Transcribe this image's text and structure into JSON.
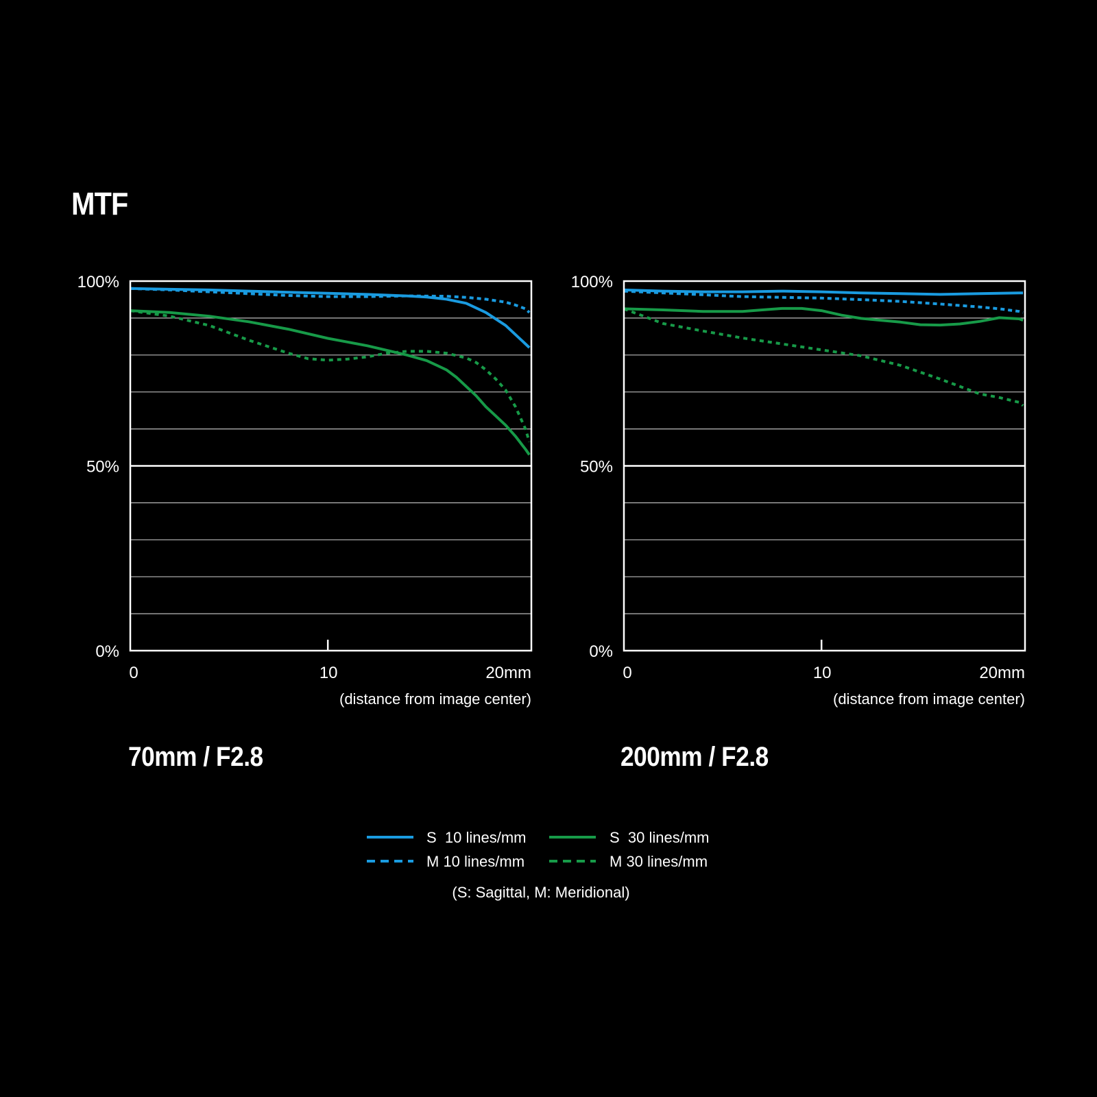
{
  "page": {
    "title": "MTF"
  },
  "colors": {
    "background": "#000000",
    "blue": "#1a9be0",
    "green": "#179a48",
    "grid": "#bbbbbb",
    "frame": "#ffffff"
  },
  "legend": {
    "items": [
      {
        "label": "S  10 lines/mm",
        "color": "#1a9be0",
        "style": "solid"
      },
      {
        "label": "S  30 lines/mm",
        "color": "#179a48",
        "style": "solid"
      },
      {
        "label": "M 10 lines/mm",
        "color": "#1a9be0",
        "style": "dashed"
      },
      {
        "label": "M 30 lines/mm",
        "color": "#179a48",
        "style": "dashed"
      }
    ],
    "note": "(S: Sagittal, M: Meridional)"
  },
  "chart_data": [
    {
      "type": "line",
      "title": "70mm / F2.8",
      "xlabel": "(distance from image center)",
      "ylabel": "",
      "xlim": [
        0,
        20.3
      ],
      "ylim": [
        0,
        100
      ],
      "x_ticks": [
        "0",
        "10",
        "20mm"
      ],
      "y_ticks": [
        "100%",
        "50%",
        "0%"
      ],
      "grid": true,
      "series": [
        {
          "name": "S  10 lines/mm",
          "color": "#1a9be0",
          "style": "solid",
          "x": [
            0,
            2,
            4,
            6,
            8,
            10,
            12,
            14,
            15,
            16,
            17,
            18,
            19,
            20,
            20.2
          ],
          "y": [
            98,
            97.8,
            97.6,
            97.3,
            97,
            96.7,
            96.4,
            96,
            95.7,
            95.1,
            94,
            91.5,
            88,
            83,
            82
          ]
        },
        {
          "name": "M 10 lines/mm",
          "color": "#1a9be0",
          "style": "dashed",
          "x": [
            0,
            2,
            4,
            6,
            8,
            10,
            12,
            14,
            16,
            17,
            18,
            19,
            19.5,
            20,
            20.2
          ],
          "y": [
            98,
            97.6,
            97.1,
            96.6,
            96.1,
            95.8,
            95.8,
            96,
            95.9,
            95.6,
            95.1,
            94.3,
            93.5,
            92.5,
            91.5
          ]
        },
        {
          "name": "S  30 lines/mm",
          "color": "#179a48",
          "style": "solid",
          "x": [
            0,
            2,
            4,
            6,
            8,
            10,
            12,
            14,
            15,
            16,
            16.5,
            17,
            17.5,
            18,
            18.5,
            19,
            19.5,
            20,
            20.2
          ],
          "y": [
            92,
            91.5,
            90.5,
            89,
            87,
            84.5,
            82.5,
            80,
            78.5,
            76,
            74,
            71.5,
            69,
            66,
            63.5,
            61,
            58,
            54.5,
            53
          ]
        },
        {
          "name": "M 30 lines/mm",
          "color": "#179a48",
          "style": "dashed",
          "x": [
            0,
            2,
            4,
            6,
            8,
            9,
            10,
            11,
            12,
            13,
            14,
            15,
            16,
            17,
            17.5,
            18,
            18.5,
            19,
            19.5,
            20,
            20.2
          ],
          "y": [
            92,
            90.5,
            88,
            84,
            80.5,
            79,
            78.6,
            78.9,
            79.5,
            80.5,
            81,
            81,
            80.5,
            79.2,
            78,
            76,
            73.5,
            70.5,
            66,
            60,
            56.5
          ]
        }
      ]
    },
    {
      "type": "line",
      "title": "200mm / F2.8",
      "xlabel": "(distance from image center)",
      "ylabel": "",
      "xlim": [
        0,
        20.3
      ],
      "ylim": [
        0,
        100
      ],
      "x_ticks": [
        "0",
        "10",
        "20mm"
      ],
      "y_ticks": [
        "100%",
        "50%",
        "0%"
      ],
      "grid": true,
      "series": [
        {
          "name": "S  10 lines/mm",
          "color": "#1a9be0",
          "style": "solid",
          "x": [
            0,
            2,
            4,
            6,
            8,
            10,
            12,
            14,
            16,
            18,
            20,
            20.2
          ],
          "y": [
            97.6,
            97.3,
            97.1,
            97.1,
            97.3,
            97.1,
            96.8,
            96.6,
            96.4,
            96.6,
            96.8,
            96.8
          ]
        },
        {
          "name": "M 10 lines/mm",
          "color": "#1a9be0",
          "style": "dashed",
          "x": [
            0,
            2,
            4,
            6,
            8,
            10,
            12,
            14,
            16,
            18,
            19,
            20,
            20.2
          ],
          "y": [
            97.3,
            96.8,
            96.3,
            95.8,
            95.6,
            95.4,
            95,
            94.5,
            93.8,
            93,
            92.5,
            91.8,
            91.5
          ]
        },
        {
          "name": "S  30 lines/mm",
          "color": "#179a48",
          "style": "solid",
          "x": [
            0,
            2,
            4,
            6,
            7,
            8,
            9,
            10,
            11,
            12,
            13,
            14,
            15,
            16,
            17,
            18,
            19,
            20,
            20.2
          ],
          "y": [
            92.5,
            92.2,
            91.8,
            91.8,
            92.2,
            92.6,
            92.6,
            92,
            90.8,
            89.9,
            89.4,
            88.9,
            88.2,
            88.1,
            88.4,
            89.1,
            90.1,
            89.8,
            89.4
          ]
        },
        {
          "name": "M 30 lines/mm",
          "color": "#179a48",
          "style": "dashed",
          "x": [
            0,
            2,
            4,
            6,
            8,
            10,
            12,
            14,
            16,
            18,
            19,
            20,
            20.2
          ],
          "y": [
            92.5,
            88.5,
            86.5,
            84.6,
            83,
            81.4,
            79.8,
            77.2,
            73.5,
            69.5,
            68.5,
            67.2,
            66.3
          ]
        }
      ]
    }
  ]
}
